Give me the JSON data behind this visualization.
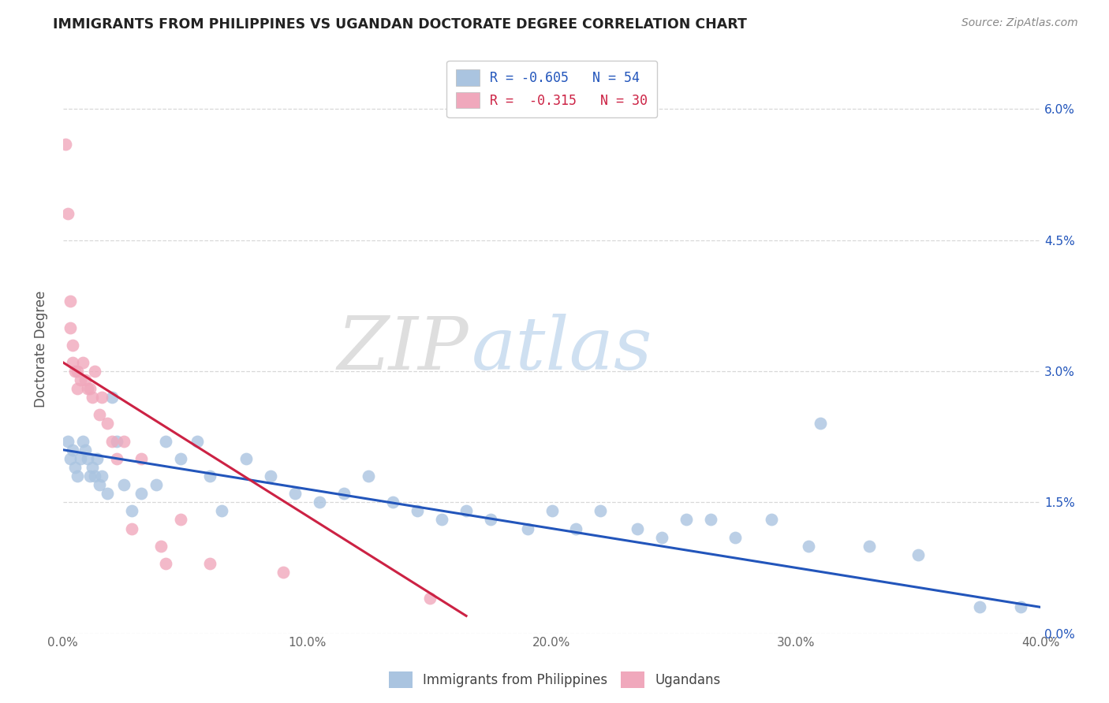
{
  "title": "IMMIGRANTS FROM PHILIPPINES VS UGANDAN DOCTORATE DEGREE CORRELATION CHART",
  "source": "Source: ZipAtlas.com",
  "ylabel": "Doctorate Degree",
  "legend_labels": [
    "Immigrants from Philippines",
    "Ugandans"
  ],
  "r_blue": -0.605,
  "n_blue": 54,
  "r_pink": -0.315,
  "n_pink": 30,
  "xlim": [
    0.0,
    0.4
  ],
  "ylim": [
    0.0,
    0.065
  ],
  "xticks": [
    0.0,
    0.1,
    0.2,
    0.3,
    0.4
  ],
  "yticks_right": [
    0.0,
    0.015,
    0.03,
    0.045,
    0.06
  ],
  "ytick_labels_right": [
    "0.0%",
    "1.5%",
    "3.0%",
    "4.5%",
    "6.0%"
  ],
  "xtick_labels": [
    "0.0%",
    "10.0%",
    "20.0%",
    "30.0%",
    "40.0%"
  ],
  "background_color": "#ffffff",
  "grid_color": "#d8d8d8",
  "blue_color": "#aac4e0",
  "pink_color": "#f0a8bc",
  "blue_line_color": "#2255bb",
  "pink_line_color": "#cc2244",
  "watermark_zip": "ZIP",
  "watermark_atlas": "atlas",
  "blue_x": [
    0.002,
    0.003,
    0.004,
    0.005,
    0.006,
    0.007,
    0.008,
    0.009,
    0.01,
    0.011,
    0.012,
    0.013,
    0.014,
    0.015,
    0.016,
    0.018,
    0.02,
    0.022,
    0.025,
    0.028,
    0.032,
    0.038,
    0.042,
    0.048,
    0.055,
    0.06,
    0.065,
    0.075,
    0.085,
    0.095,
    0.105,
    0.115,
    0.125,
    0.135,
    0.145,
    0.155,
    0.165,
    0.175,
    0.19,
    0.2,
    0.21,
    0.22,
    0.235,
    0.245,
    0.255,
    0.265,
    0.275,
    0.29,
    0.305,
    0.31,
    0.33,
    0.35,
    0.375,
    0.392
  ],
  "blue_y": [
    0.022,
    0.02,
    0.021,
    0.019,
    0.018,
    0.02,
    0.022,
    0.021,
    0.02,
    0.018,
    0.019,
    0.018,
    0.02,
    0.017,
    0.018,
    0.016,
    0.027,
    0.022,
    0.017,
    0.014,
    0.016,
    0.017,
    0.022,
    0.02,
    0.022,
    0.018,
    0.014,
    0.02,
    0.018,
    0.016,
    0.015,
    0.016,
    0.018,
    0.015,
    0.014,
    0.013,
    0.014,
    0.013,
    0.012,
    0.014,
    0.012,
    0.014,
    0.012,
    0.011,
    0.013,
    0.013,
    0.011,
    0.013,
    0.01,
    0.024,
    0.01,
    0.009,
    0.003,
    0.003
  ],
  "pink_x": [
    0.001,
    0.002,
    0.003,
    0.003,
    0.004,
    0.004,
    0.005,
    0.006,
    0.006,
    0.007,
    0.008,
    0.009,
    0.01,
    0.011,
    0.012,
    0.013,
    0.015,
    0.016,
    0.018,
    0.02,
    0.022,
    0.025,
    0.028,
    0.032,
    0.04,
    0.042,
    0.048,
    0.06,
    0.09,
    0.15
  ],
  "pink_y": [
    0.056,
    0.048,
    0.038,
    0.035,
    0.033,
    0.031,
    0.03,
    0.03,
    0.028,
    0.029,
    0.031,
    0.029,
    0.028,
    0.028,
    0.027,
    0.03,
    0.025,
    0.027,
    0.024,
    0.022,
    0.02,
    0.022,
    0.012,
    0.02,
    0.01,
    0.008,
    0.013,
    0.008,
    0.007,
    0.004
  ],
  "blue_line_x": [
    0.0,
    0.4
  ],
  "blue_line_y": [
    0.021,
    0.003
  ],
  "pink_line_x": [
    0.0,
    0.165
  ],
  "pink_line_y": [
    0.031,
    0.002
  ]
}
